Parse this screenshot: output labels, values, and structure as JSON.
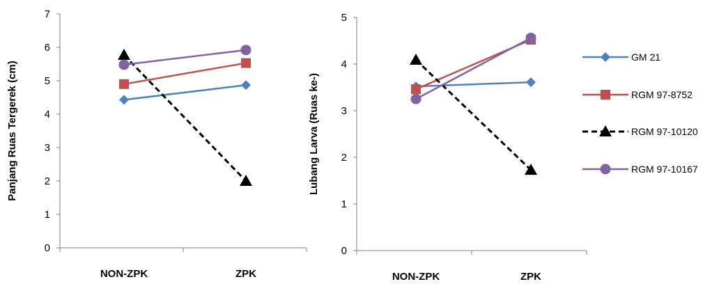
{
  "chart_data": [
    {
      "type": "line",
      "ylabel": "Panjang Ruas Tergerek (cm)",
      "xlabel": "",
      "categories": [
        "NON-ZPK",
        "ZPK"
      ],
      "ylim": [
        0,
        7
      ],
      "yticks": [
        0,
        1,
        2,
        3,
        4,
        5,
        6,
        7
      ],
      "grid": false,
      "series": [
        {
          "name": "GM 21",
          "values": [
            4.43,
            4.87
          ],
          "color": "#4f81bd",
          "marker": "diamond",
          "dash": "solid"
        },
        {
          "name": "RGM 97-8752",
          "values": [
            4.9,
            5.53
          ],
          "color": "#c0504d",
          "marker": "square",
          "dash": "solid"
        },
        {
          "name": "RGM 97-10120",
          "values": [
            5.77,
            2.0
          ],
          "color": "#000000",
          "marker": "triangle",
          "dash": "dashed"
        },
        {
          "name": "RGM 97-10167",
          "values": [
            5.48,
            5.92
          ],
          "color": "#8064a2",
          "marker": "circle",
          "dash": "solid"
        }
      ]
    },
    {
      "type": "line",
      "ylabel": "Lubang Larva (Ruas ke-)",
      "xlabel": "",
      "categories": [
        "NON-ZPK",
        "ZPK"
      ],
      "ylim": [
        0,
        5
      ],
      "yticks": [
        0,
        1,
        2,
        3,
        4,
        5
      ],
      "grid": false,
      "legend": "right",
      "series": [
        {
          "name": "GM 21",
          "values": [
            3.52,
            3.61
          ],
          "color": "#4f81bd",
          "marker": "diamond",
          "dash": "solid"
        },
        {
          "name": "RGM 97-8752",
          "values": [
            3.46,
            4.52
          ],
          "color": "#c0504d",
          "marker": "square",
          "dash": "solid"
        },
        {
          "name": "RGM 97-10120",
          "values": [
            4.09,
            1.73
          ],
          "color": "#000000",
          "marker": "triangle",
          "dash": "dashed"
        },
        {
          "name": "RGM 97-10167",
          "values": [
            3.25,
            4.56
          ],
          "color": "#8064a2",
          "marker": "circle",
          "dash": "solid"
        }
      ]
    }
  ]
}
